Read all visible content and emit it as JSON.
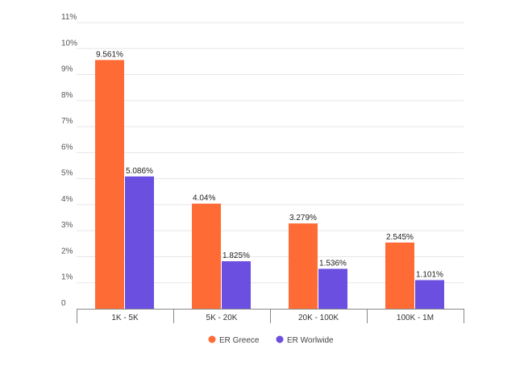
{
  "chart_data": {
    "type": "bar",
    "categories": [
      "1K - 5K",
      "5K - 20K",
      "20K - 100K",
      "100K - 1M"
    ],
    "series": [
      {
        "name": "ER Greece",
        "values": [
          9.561,
          4.04,
          3.279,
          2.545
        ],
        "labels": [
          "9.561%",
          "4.04%",
          "3.279%",
          "2.545%"
        ],
        "color": "#ff6b35"
      },
      {
        "name": "ER Worlwide",
        "values": [
          5.086,
          1.825,
          1.536,
          1.101
        ],
        "labels": [
          "5.086%",
          "1.825%",
          "1.536%",
          "1.101%"
        ],
        "color": "#6b4fe0"
      }
    ],
    "ylim": [
      0,
      11
    ],
    "yticks": [
      0,
      1,
      2,
      3,
      4,
      5,
      6,
      7,
      8,
      9,
      10,
      11
    ],
    "ytick_labels": [
      "0",
      "1%",
      "2%",
      "3%",
      "4%",
      "5%",
      "6%",
      "7%",
      "8%",
      "9%",
      "10%",
      "11%"
    ],
    "grid": true,
    "legend_position": "bottom-center"
  }
}
